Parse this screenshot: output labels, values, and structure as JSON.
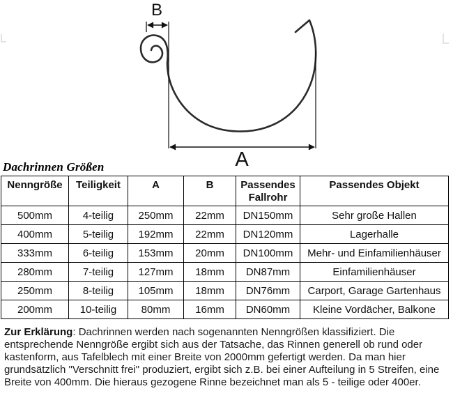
{
  "diagram": {
    "label_a": "A",
    "label_b": "B",
    "stroke_color": "#2a2a2a",
    "dimension_color": "#111111"
  },
  "table": {
    "title": "Dachrinnen Größen",
    "headers": [
      "Nenngröße",
      "Teiligkeit",
      "A",
      "B",
      "Passendes Fallrohr",
      "Passendes Objekt"
    ],
    "rows": [
      [
        "500mm",
        "4-teilig",
        "250mm",
        "22mm",
        "DN150mm",
        "Sehr große Hallen"
      ],
      [
        "400mm",
        "5-teilig",
        "192mm",
        "22mm",
        "DN120mm",
        "Lagerhalle"
      ],
      [
        "333mm",
        "6-teilig",
        "153mm",
        "20mm",
        "DN100mm",
        "Mehr- und Einfamilienhäuser"
      ],
      [
        "280mm",
        "7-teilig",
        "127mm",
        "18mm",
        "DN87mm",
        "Einfamilienhäuser"
      ],
      [
        "250mm",
        "8-teilig",
        "105mm",
        "18mm",
        "DN76mm",
        "Carport, Garage Gartenhaus"
      ],
      [
        "200mm",
        "10-teilig",
        "80mm",
        "16mm",
        "DN60mm",
        "Kleine Vordächer, Balkone"
      ]
    ]
  },
  "explanation": {
    "lead": "Zur Erklärung",
    "body": ": Dachrinnen werden nach sogenannten Nenngrößen klassifiziert. Die entsprechende Nenngröße ergibt sich aus der Tatsache, das Rinnen generell ob rund oder kastenform, aus Tafelblech mit einer Breite von 2000mm gefertigt werden. Da man hier grundsätzlich \"Verschnitt frei\" produziert, ergibt sich z.B. bei einer Aufteilung in 5 Streifen, eine Breite von 400mm. Die hieraus gezogene Rinne bezeichnet man als 5 - teilige oder 400er."
  }
}
